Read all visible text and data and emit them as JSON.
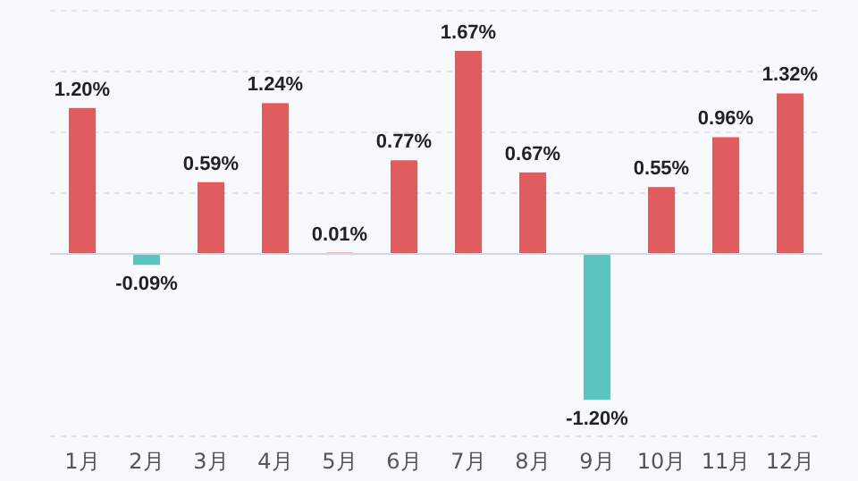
{
  "chart_data": {
    "type": "bar",
    "categories": [
      "1月",
      "2月",
      "3月",
      "4月",
      "5月",
      "6月",
      "7月",
      "8月",
      "9月",
      "10月",
      "11月",
      "12月"
    ],
    "values": [
      1.2,
      -0.09,
      0.59,
      1.24,
      0.01,
      0.77,
      1.67,
      0.67,
      -1.2,
      0.55,
      0.96,
      1.32
    ],
    "value_labels": [
      "1.20%",
      "-0.09%",
      "0.59%",
      "1.24%",
      "0.01%",
      "0.77%",
      "1.67%",
      "0.67%",
      "-1.20%",
      "0.55%",
      "0.96%",
      "1.32%"
    ],
    "colors": [
      "#e05c5f",
      "#5bc4be",
      "#e05c5f",
      "#e05c5f",
      "#e05c5f",
      "#e05c5f",
      "#e05c5f",
      "#e05c5f",
      "#5bc4be",
      "#e05c5f",
      "#e05c5f",
      "#e05c5f"
    ],
    "ylim": [
      -1.5,
      2
    ],
    "yticks": [
      {
        "value": -1.5,
        "label": null
      },
      {
        "value": 0.5,
        "label": null
      },
      {
        "value": 1,
        "label": null
      },
      {
        "value": 1.5,
        "label": null
      },
      {
        "value": 2,
        "label": null
      }
    ],
    "grid": "y",
    "tick_labels": "x"
  }
}
